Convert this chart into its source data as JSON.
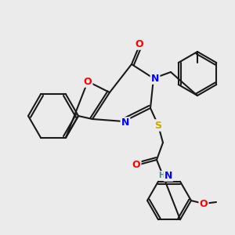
{
  "bg_color": "#ebebeb",
  "bond_color": "#1a1a1a",
  "bond_width": 1.5,
  "atom_colors": {
    "O": "#ff0000",
    "N": "#0000ff",
    "S": "#ccaa00",
    "C": "#1a1a1a",
    "H": "#4a8a8a"
  },
  "font_size": 8,
  "fig_size": [
    3.0,
    3.0
  ],
  "dpi": 100
}
